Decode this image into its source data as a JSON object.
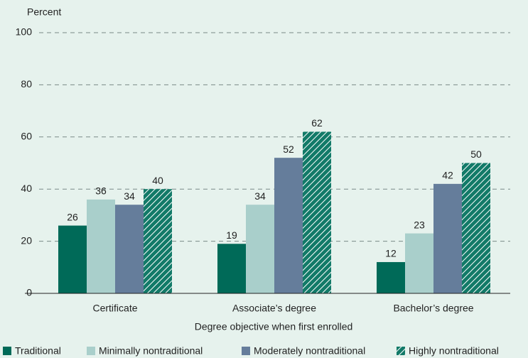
{
  "chart_data": {
    "type": "bar",
    "y_label": "Percent",
    "x_label": "Degree objective when first enrolled",
    "categories": [
      "Certificate",
      "Associate’s degree",
      "Bachelor’s degree"
    ],
    "series": [
      {
        "name": "Traditional",
        "color": "#006a58",
        "values": [
          26,
          19,
          12
        ]
      },
      {
        "name": "Minimally nontraditional",
        "color": "#a9cfcb",
        "values": [
          36,
          34,
          23
        ]
      },
      {
        "name": "Moderately nontraditional",
        "color": "#657d9b",
        "values": [
          34,
          52,
          42
        ]
      },
      {
        "name": "Highly nontraditional",
        "color": "#127a68",
        "hatch": true,
        "values": [
          40,
          62,
          50
        ]
      }
    ],
    "ylim": [
      0,
      100
    ],
    "yticks": [
      0,
      20,
      40,
      60,
      80,
      100
    ],
    "grid": true,
    "legend": "bottom"
  }
}
